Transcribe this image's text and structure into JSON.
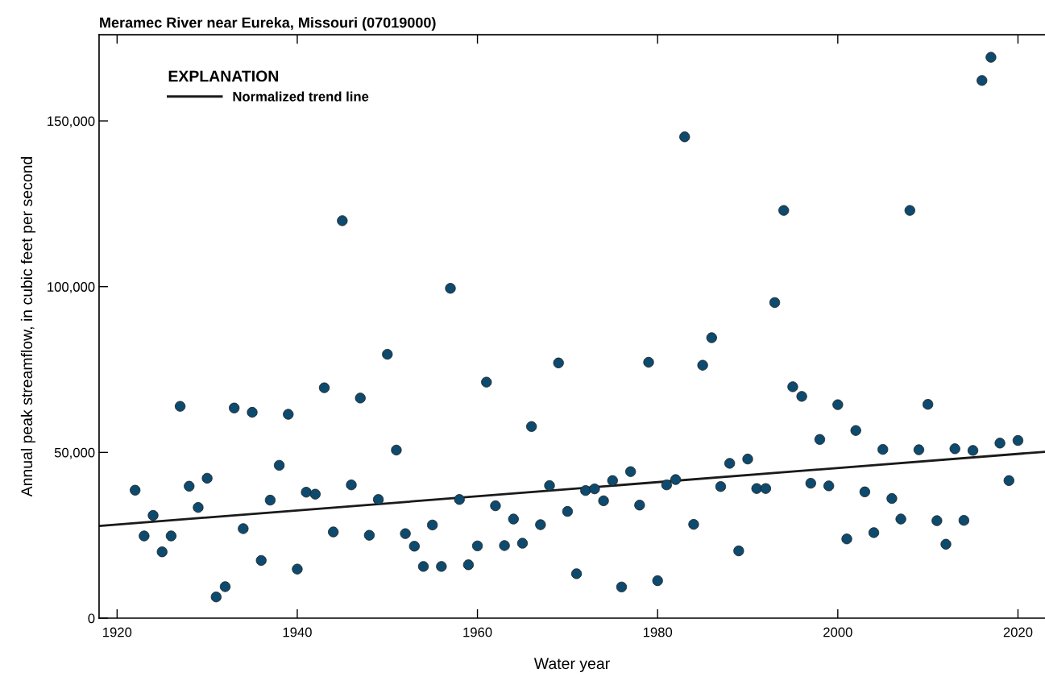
{
  "chart_data": {
    "type": "scatter",
    "title": "Meramec River near Eureka, Missouri (07019000)",
    "xlabel": "Water year",
    "ylabel": "Annual peak streamflow, in cubic feet per second",
    "legend_title": "EXPLANATION",
    "legend": "top left",
    "grid": false,
    "marker": "circle",
    "xlim": [
      1918,
      2023
    ],
    "ylim": [
      0,
      176000
    ],
    "xticks": [
      1920,
      1940,
      1960,
      1980,
      2000,
      2020
    ],
    "yticks": [
      {
        "value": 0,
        "label": "0"
      },
      {
        "value": 50000,
        "label": "50,000"
      },
      {
        "value": 100000,
        "label": "100,000"
      },
      {
        "value": 150000,
        "label": "150,000"
      }
    ],
    "series": [
      {
        "color": "#0d4a6e",
        "x": [
          1922,
          1923,
          1924,
          1925,
          1926,
          1927,
          1928,
          1929,
          1930,
          1931,
          1932,
          1933,
          1934,
          1935,
          1936,
          1937,
          1938,
          1939,
          1940,
          1941,
          1942,
          1943,
          1944,
          1945,
          1946,
          1947,
          1948,
          1949,
          1950,
          1951,
          1952,
          1953,
          1954,
          1955,
          1956,
          1957,
          1958,
          1959,
          1960,
          1961,
          1962,
          1963,
          1964,
          1965,
          1966,
          1967,
          1968,
          1969,
          1970,
          1971,
          1972,
          1973,
          1974,
          1975,
          1976,
          1977,
          1978,
          1979,
          1980,
          1981,
          1982,
          1983,
          1984,
          1985,
          1986,
          1987,
          1988,
          1989,
          1990,
          1991,
          1992,
          1993,
          1994,
          1995,
          1996,
          1997,
          1998,
          1999,
          2000,
          2001,
          2002,
          2003,
          2004,
          2005,
          2006,
          2007,
          2008,
          2009,
          2010,
          2011,
          2012,
          2013,
          2014,
          2015,
          2016,
          2017,
          2018,
          2019,
          2020
        ],
        "values": [
          38600,
          24800,
          31000,
          20000,
          24800,
          63900,
          39800,
          33400,
          42200,
          6400,
          9500,
          63400,
          27000,
          62100,
          17400,
          35600,
          46100,
          61500,
          14800,
          38000,
          37400,
          69500,
          26000,
          119900,
          40200,
          66400,
          25000,
          35800,
          79600,
          50700,
          25500,
          21700,
          15600,
          28100,
          15600,
          99500,
          35800,
          16100,
          21800,
          71200,
          33900,
          21900,
          29900,
          22600,
          57800,
          28200,
          40000,
          77000,
          32200,
          13400,
          38500,
          39000,
          35400,
          41500,
          9400,
          44200,
          34100,
          77200,
          11300,
          40200,
          41800,
          145200,
          28300,
          76300,
          84600,
          39700,
          46700,
          20300,
          48000,
          39100,
          39100,
          95200,
          123000,
          69800,
          66900,
          40700,
          53900,
          39900,
          64400,
          23900,
          56600,
          38100,
          25800,
          50900,
          36100,
          29900,
          123000,
          50800,
          64500,
          29400,
          22300,
          51100,
          29500,
          50600,
          162200,
          169200,
          52800,
          41500,
          53600
        ]
      },
      {
        "type": "line",
        "name": "Normalized trend line",
        "color": "#1a1a1a",
        "line_style": "solid",
        "marker": "none",
        "x": [
          1918,
          2023
        ],
        "values": [
          27800,
          50200
        ]
      }
    ]
  }
}
